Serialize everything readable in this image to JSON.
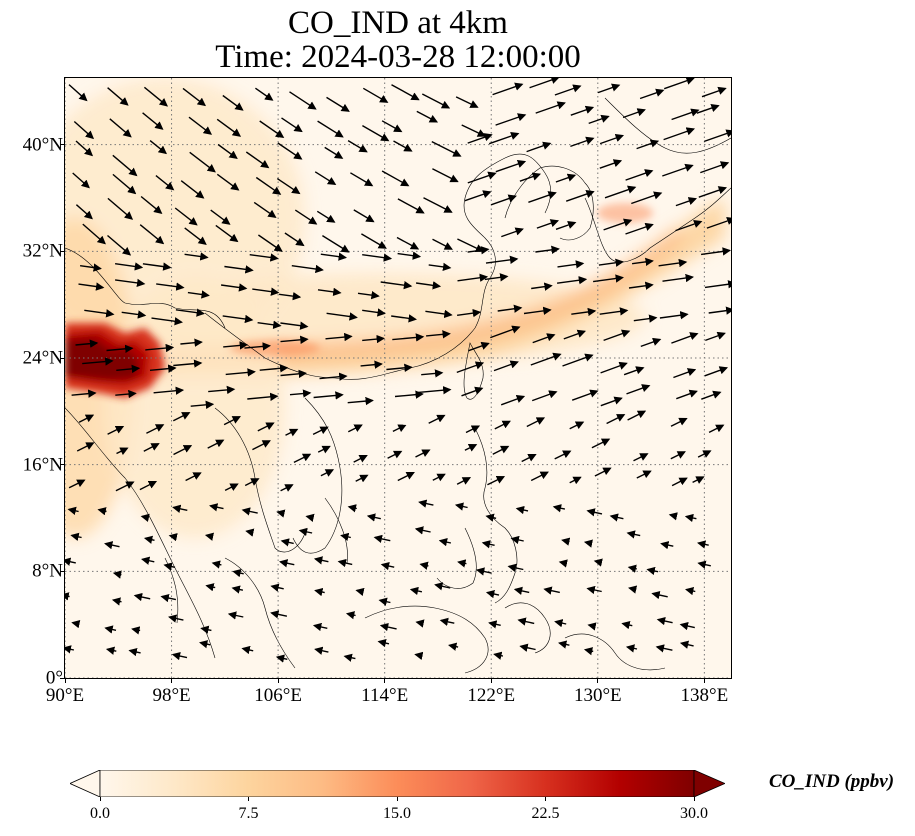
{
  "title": {
    "line1": "CO_IND at 4km",
    "line2": "Time: 2024-03-28 12:00:00"
  },
  "map": {
    "lon_range": [
      90,
      140
    ],
    "lat_range": [
      0,
      45
    ],
    "projection": "PlateCarree",
    "gridlines": "dotted",
    "field": "CO_IND",
    "units": "ppbv",
    "wind_vectors": true,
    "plume_features": [
      {
        "feature": "high CO source region",
        "lon_range": [
          90,
          96
        ],
        "lat_range": [
          20,
          27
        ],
        "value": 30.0
      },
      {
        "feature": "eastward plume",
        "lon_range": [
          96,
          136
        ],
        "lat_range": [
          23,
          35
        ],
        "value": 10.0
      }
    ]
  },
  "x_ticks": [
    "90°E",
    "98°E",
    "106°E",
    "114°E",
    "122°E",
    "130°E",
    "138°E"
  ],
  "x_tick_values": [
    90,
    98,
    106,
    114,
    122,
    130,
    138
  ],
  "y_ticks": [
    "0°",
    "8°N",
    "16°N",
    "24°N",
    "32°N",
    "40°N"
  ],
  "y_tick_values": [
    0,
    8,
    16,
    24,
    32,
    40
  ],
  "colorbar": {
    "label": "CO_IND (ppbv)",
    "ticks": [
      "0.0",
      "7.5",
      "15.0",
      "22.5",
      "30.0"
    ],
    "tick_values": [
      0,
      7.5,
      15,
      22.5,
      30
    ],
    "range": [
      0,
      30
    ],
    "colormap": "OrRd",
    "colors": [
      "#fff7ec",
      "#fee8c8",
      "#fdd49e",
      "#fdbb84",
      "#fc8d59",
      "#ef6548",
      "#d7301f",
      "#b30000",
      "#7f0000"
    ],
    "extend": "both"
  },
  "colors": {
    "coastline": "#000000",
    "grid": "#777777",
    "arrows": "#000000",
    "background": "#fff7ec"
  }
}
